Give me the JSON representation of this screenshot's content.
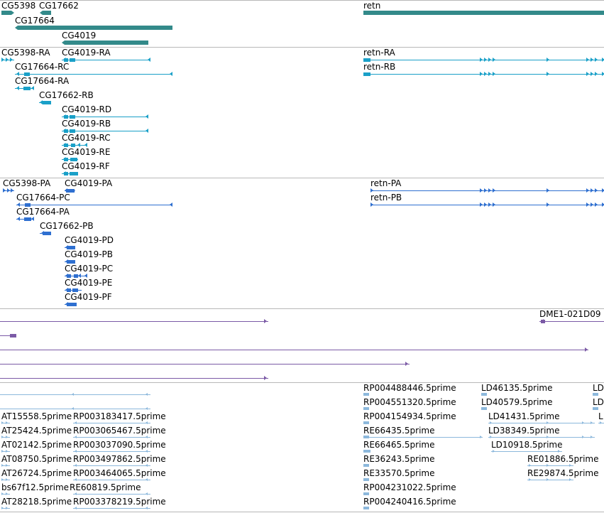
{
  "colors": {
    "gene": "#338a8a",
    "transcript": "#1aa0c8",
    "protein": "#2e6fd0",
    "clone": "#7b5aa6",
    "est": "#8cb8dc"
  },
  "tracks": [
    {
      "id": "genes",
      "features": [
        {
          "label": "CG5398"
        },
        {
          "label": "CG17662"
        },
        {
          "label": "CG17664"
        },
        {
          "label": "CG4019"
        },
        {
          "label": "retn"
        }
      ]
    },
    {
      "id": "transcripts",
      "features": [
        {
          "label": "CG5398-RA"
        },
        {
          "label": "CG4019-RA"
        },
        {
          "label": "CG17664-RC"
        },
        {
          "label": "CG17664-RA"
        },
        {
          "label": "CG17662-RB"
        },
        {
          "label": "CG4019-RD"
        },
        {
          "label": "CG4019-RB"
        },
        {
          "label": "CG4019-RC"
        },
        {
          "label": "CG4019-RE"
        },
        {
          "label": "CG4019-RF"
        },
        {
          "label": "retn-RA"
        },
        {
          "label": "retn-RB"
        }
      ]
    },
    {
      "id": "proteins",
      "features": [
        {
          "label": "CG5398-PA"
        },
        {
          "label": "CG4019-PA"
        },
        {
          "label": "CG17664-PC"
        },
        {
          "label": "CG17664-PA"
        },
        {
          "label": "CG17662-PB"
        },
        {
          "label": "CG4019-PD"
        },
        {
          "label": "CG4019-PB"
        },
        {
          "label": "CG4019-PC"
        },
        {
          "label": "CG4019-PE"
        },
        {
          "label": "CG4019-PF"
        },
        {
          "label": "retn-PA"
        },
        {
          "label": "retn-PB"
        }
      ]
    },
    {
      "id": "clones",
      "features": [
        {
          "label": "DME1-021D09"
        }
      ]
    },
    {
      "id": "ests",
      "features": [
        {
          "label": "AT15558.5prime"
        },
        {
          "label": "RP003183417.5prime"
        },
        {
          "label": "AT25424.5prime"
        },
        {
          "label": "RP003065467.5prime"
        },
        {
          "label": "AT02142.5prime"
        },
        {
          "label": "RP003037090.5prime"
        },
        {
          "label": "AT08750.5prime"
        },
        {
          "label": "RP003497862.5prime"
        },
        {
          "label": "AT26724.5prime"
        },
        {
          "label": "RP003464065.5prime"
        },
        {
          "label": "bs67f12.5prime"
        },
        {
          "label": "RE60819.5prime"
        },
        {
          "label": "AT28218.5prime"
        },
        {
          "label": "RP003378219.5prime"
        },
        {
          "label": "RP004488446.5prime"
        },
        {
          "label": "RP004551320.5prime"
        },
        {
          "label": "RP004154934.5prime"
        },
        {
          "label": "RE66435.5prime"
        },
        {
          "label": "RE66465.5prime"
        },
        {
          "label": "RE36243.5prime"
        },
        {
          "label": "RE33570.5prime"
        },
        {
          "label": "RP004231022.5prime"
        },
        {
          "label": "RP004240416.5prime"
        },
        {
          "label": "LD46135.5prime"
        },
        {
          "label": "LD40579.5prime"
        },
        {
          "label": "LD41431.5prime"
        },
        {
          "label": "LD38349.5prime"
        },
        {
          "label": "LD10918.5prime"
        },
        {
          "label": "RE01886.5prime"
        },
        {
          "label": "RE29874.5prime"
        },
        {
          "label": "LD"
        },
        {
          "label": "LD"
        },
        {
          "label": "L"
        }
      ]
    }
  ]
}
